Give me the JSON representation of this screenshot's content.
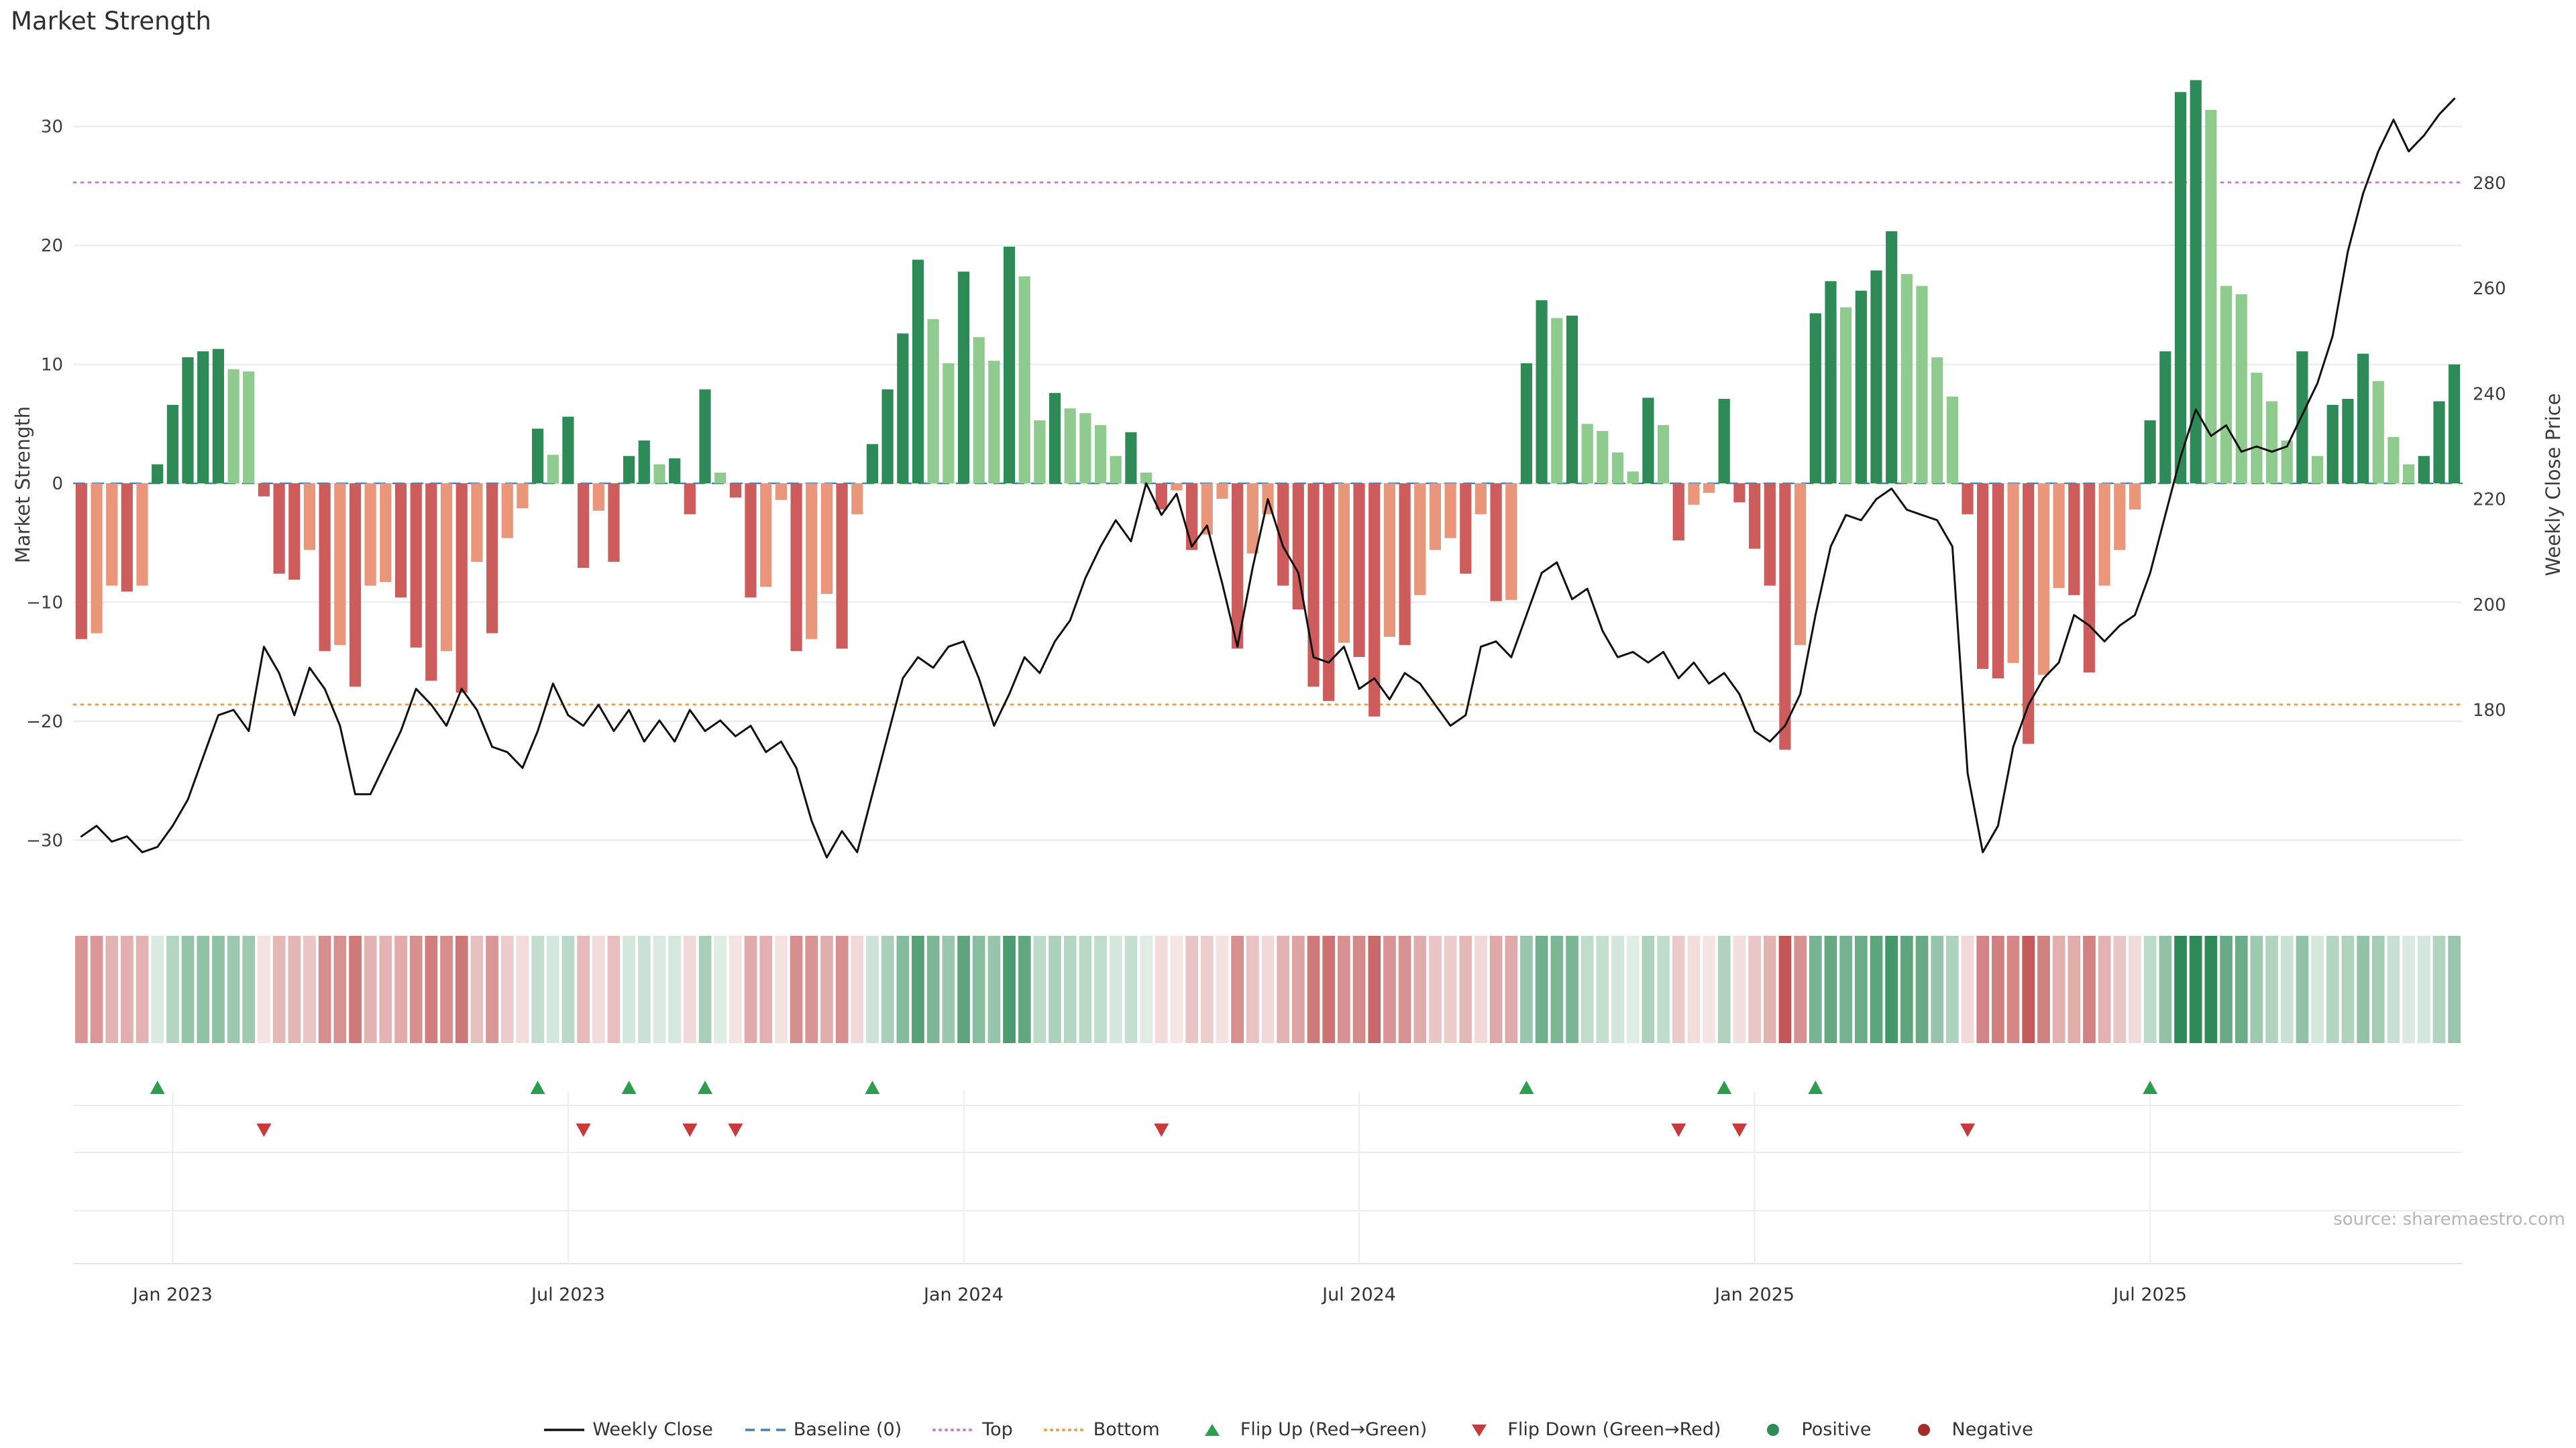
{
  "title": "Market Strength",
  "source_note": "source: sharemaestro.com",
  "axes": {
    "left_title": "Market Strength",
    "right_title": "Weekly Close Price",
    "left_tick_labels": [
      "30",
      "20",
      "10",
      "0",
      "−10",
      "−20",
      "−30"
    ],
    "left_tick_values": [
      30,
      20,
      10,
      0,
      -10,
      -20,
      -30
    ],
    "right_tick_labels": [
      "280",
      "260",
      "240",
      "220",
      "200",
      "180"
    ],
    "right_tick_values": [
      280,
      260,
      240,
      220,
      200,
      180
    ],
    "x_tick_labels": [
      "Jan 2023",
      "Jul 2023",
      "Jan 2024",
      "Jul 2024",
      "Jan 2025",
      "Jul 2025"
    ],
    "x_tick_weeks": [
      6.5,
      32.5,
      58.5,
      84.5,
      110.5,
      136.5
    ]
  },
  "chart_data": {
    "type": "bar",
    "x_unit": "week",
    "n_weeks": 157,
    "left_axis_range": [
      -35,
      35
    ],
    "right_axis_range": [
      144,
      302
    ],
    "grid": true,
    "legend_position": "bottom",
    "series": [
      {
        "name": "Market Strength",
        "type": "bar",
        "axis": "left",
        "values": [
          -13.1,
          -12.6,
          -8.6,
          -9.1,
          -8.6,
          1.6,
          6.6,
          10.6,
          11.1,
          11.3,
          9.6,
          9.4,
          -1.1,
          -7.6,
          -8.1,
          -5.6,
          -14.1,
          -13.6,
          -17.1,
          -8.6,
          -8.3,
          -9.6,
          -13.8,
          -16.6,
          -14.1,
          -17.6,
          -6.6,
          -12.6,
          -4.6,
          -2.1,
          4.6,
          2.4,
          5.6,
          -7.1,
          -2.3,
          -6.6,
          2.3,
          3.6,
          1.6,
          2.1,
          -2.6,
          7.9,
          0.9,
          -1.2,
          -9.6,
          -8.7,
          -1.4,
          -14.1,
          -13.1,
          -9.3,
          -13.9,
          -2.6,
          3.3,
          7.9,
          12.6,
          18.8,
          13.8,
          10.1,
          17.8,
          12.3,
          10.3,
          19.9,
          17.4,
          5.3,
          7.6,
          6.3,
          5.9,
          4.9,
          2.3,
          4.3,
          0.9,
          -2.2,
          -0.6,
          -5.6,
          -4.3,
          -1.3,
          -13.9,
          -5.9,
          -2.6,
          -8.6,
          -10.6,
          -17.1,
          -18.3,
          -13.4,
          -14.6,
          -19.6,
          -12.9,
          -13.6,
          -9.4,
          -5.6,
          -4.6,
          -7.6,
          -2.6,
          -9.9,
          -9.8,
          10.1,
          15.4,
          13.9,
          14.1,
          5.0,
          4.4,
          2.6,
          1.0,
          7.2,
          4.9,
          -4.8,
          -1.8,
          -0.8,
          7.1,
          -1.6,
          -5.5,
          -8.6,
          -22.4,
          -13.6,
          14.3,
          17.0,
          14.8,
          16.2,
          17.9,
          21.2,
          17.6,
          16.6,
          10.6,
          7.3,
          -2.6,
          -15.6,
          -16.4,
          -15.1,
          -21.9,
          -16.1,
          -8.8,
          -9.4,
          -15.9,
          -8.6,
          -5.6,
          -2.2,
          5.3,
          11.1,
          32.9,
          33.9,
          31.4,
          16.6,
          15.9,
          9.3,
          6.9,
          3.6,
          11.1,
          2.3,
          6.6,
          7.1,
          10.9,
          8.6,
          3.9,
          1.6,
          2.3,
          6.9,
          10.0
        ]
      },
      {
        "name": "Weekly Close",
        "type": "line",
        "axis": "right",
        "values": [
          156,
          158,
          155,
          156,
          153,
          154,
          158,
          163,
          171,
          179,
          180,
          176,
          192,
          187,
          179,
          188,
          184,
          177,
          164,
          164,
          170,
          176,
          184,
          181,
          177,
          184,
          180,
          173,
          172,
          169,
          176,
          185,
          179,
          177,
          181,
          176,
          180,
          174,
          178,
          174,
          180,
          176,
          178,
          175,
          177,
          172,
          174,
          169,
          159,
          152,
          157,
          153,
          164,
          175,
          186,
          190,
          188,
          192,
          193,
          186,
          177,
          183,
          190,
          187,
          193,
          197,
          205,
          211,
          216,
          212,
          223,
          217,
          221,
          211,
          215,
          204,
          192,
          207,
          220,
          211,
          206,
          190,
          189,
          192,
          184,
          186,
          182,
          187,
          185,
          181,
          177,
          179,
          192,
          193,
          190,
          198,
          206,
          208,
          201,
          203,
          195,
          190,
          191,
          189,
          191,
          186,
          189,
          185,
          187,
          183,
          176,
          174,
          177,
          183,
          198,
          211,
          217,
          216,
          220,
          222,
          218,
          217,
          216,
          211,
          168,
          153,
          158,
          173,
          181,
          186,
          189,
          198,
          196,
          193,
          196,
          198,
          206,
          217,
          228,
          237,
          232,
          234,
          229,
          230,
          229,
          230,
          236,
          242,
          251,
          267,
          278,
          286,
          292,
          286,
          289,
          293,
          296
        ]
      }
    ],
    "reference_lines": [
      {
        "name": "Baseline (0)",
        "value": 0,
        "style": "dashed"
      },
      {
        "name": "Top",
        "value": 25.3,
        "style": "dotted"
      },
      {
        "name": "Bottom",
        "value": -18.6,
        "style": "dotted"
      }
    ],
    "flip_up_weeks": [
      5,
      30,
      36,
      41,
      52,
      95,
      108,
      114,
      136
    ],
    "flip_down_weeks": [
      12,
      33,
      40,
      43,
      71,
      105,
      109,
      124
    ]
  },
  "colors": {
    "positive_dark": "#2e8b57",
    "positive_light": "#8fca8f",
    "negative_dark": "#cd5c5c",
    "negative_light": "#e9967a",
    "line": "#111111",
    "baseline": "#4682b4",
    "top": "#c77fd1",
    "bottom": "#e8a04a",
    "flip_up": "#2e9e4e",
    "flip_down": "#c93a3a",
    "positive_dot": "#2e8b57",
    "negative_dot": "#a52a2a",
    "heat_positive": "#2e8b57",
    "heat_negative": "#bf4d4d",
    "grid": "#e9e9e9"
  },
  "legend": {
    "items": [
      {
        "label": "Weekly Close",
        "marker": "line",
        "color": "#111111"
      },
      {
        "label": "Baseline (0)",
        "marker": "dashed-line",
        "color": "#4682b4"
      },
      {
        "label": "Top",
        "marker": "dotted-line",
        "color": "#c77fd1"
      },
      {
        "label": "Bottom",
        "marker": "dotted-line",
        "color": "#e8a04a"
      },
      {
        "label": "Flip Up (Red→Green)",
        "marker": "triangle-up",
        "color": "#2e9e4e"
      },
      {
        "label": "Flip Down (Green→Red)",
        "marker": "triangle-down",
        "color": "#c93a3a"
      },
      {
        "label": "Positive",
        "marker": "circle",
        "color": "#2e8b57"
      },
      {
        "label": "Negative",
        "marker": "circle",
        "color": "#a52a2a"
      }
    ]
  }
}
